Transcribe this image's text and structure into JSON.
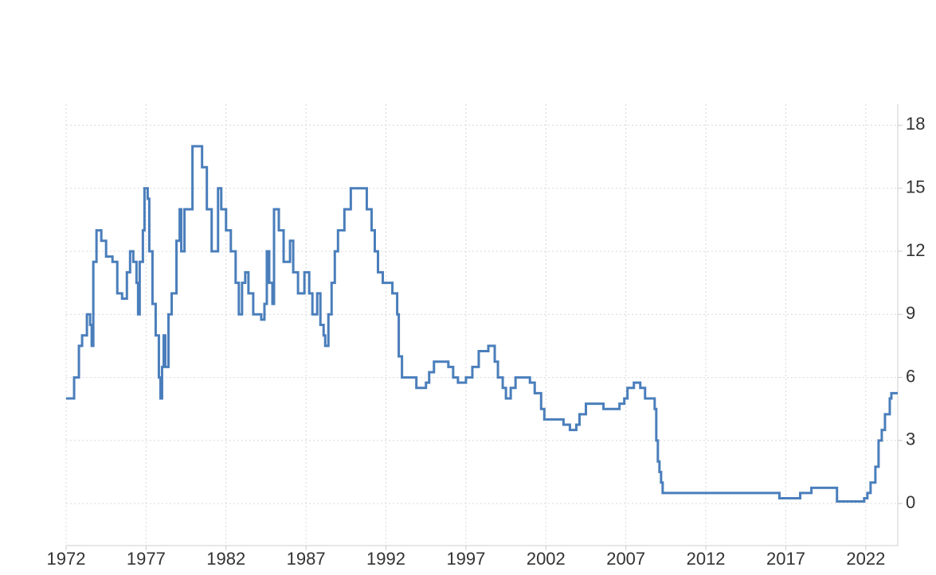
{
  "chart_data": {
    "type": "line",
    "step": true,
    "grid": true,
    "y_axis_side": "right",
    "x": [
      1972.0,
      1972.5,
      1972.8,
      1973.0,
      1973.3,
      1973.5,
      1973.6,
      1973.7,
      1973.9,
      1974.2,
      1974.5,
      1974.9,
      1975.2,
      1975.5,
      1975.8,
      1976.0,
      1976.2,
      1976.4,
      1976.5,
      1976.6,
      1976.8,
      1976.9,
      1977.1,
      1977.2,
      1977.4,
      1977.6,
      1977.8,
      1977.9,
      1978.0,
      1978.1,
      1978.2,
      1978.4,
      1978.6,
      1978.9,
      1979.1,
      1979.2,
      1979.4,
      1979.9,
      1980.5,
      1980.8,
      1981.1,
      1981.5,
      1981.7,
      1982.0,
      1982.3,
      1982.6,
      1982.8,
      1983.0,
      1983.2,
      1983.4,
      1983.7,
      1984.2,
      1984.4,
      1984.55,
      1984.7,
      1984.9,
      1985.0,
      1985.3,
      1985.6,
      1986.0,
      1986.2,
      1986.5,
      1986.9,
      1987.2,
      1987.4,
      1987.7,
      1987.9,
      1988.1,
      1988.2,
      1988.4,
      1988.6,
      1988.8,
      1989.0,
      1989.4,
      1989.8,
      1990.8,
      1991.1,
      1991.3,
      1991.5,
      1991.8,
      1992.4,
      1992.7,
      1992.8,
      1993.0,
      1993.9,
      1994.5,
      1994.7,
      1995.0,
      1995.9,
      1996.2,
      1996.5,
      1997.0,
      1997.4,
      1997.8,
      1998.4,
      1998.8,
      1999.0,
      1999.3,
      1999.5,
      1999.8,
      2000.1,
      2001.0,
      2001.3,
      2001.7,
      2001.9,
      2003.1,
      2003.5,
      2003.9,
      2004.1,
      2004.5,
      2005.6,
      2006.6,
      2006.9,
      2007.1,
      2007.5,
      2007.9,
      2008.2,
      2008.8,
      2008.9,
      2009.0,
      2009.1,
      2009.2,
      2009.3,
      2016.6,
      2017.9,
      2018.6,
      2020.2,
      2021.9,
      2022.1,
      2022.3,
      2022.6,
      2022.8,
      2023.0,
      2023.2,
      2023.5,
      2023.6,
      2024.0
    ],
    "series": [
      {
        "color": "#4a7ebb",
        "values": [
          5,
          6,
          7.5,
          8,
          9,
          8.5,
          7.5,
          11.5,
          13,
          12.5,
          11.75,
          11.5,
          10,
          9.75,
          11,
          12,
          11.5,
          10.5,
          9,
          11.5,
          13,
          15,
          14.5,
          12,
          9.5,
          8,
          6,
          5,
          6.5,
          8,
          6.5,
          9,
          10,
          12.5,
          14,
          12,
          14,
          17,
          16,
          14,
          12,
          15,
          14,
          13,
          12,
          10.5,
          9,
          10.5,
          11,
          10,
          9,
          8.75,
          9.5,
          12,
          10.5,
          9.5,
          14,
          13,
          11.5,
          12.5,
          11,
          10,
          11,
          10,
          9,
          10,
          8.5,
          8,
          7.5,
          9,
          10.5,
          12,
          13,
          14,
          15,
          14,
          13,
          12,
          11,
          10.5,
          10,
          9,
          7,
          6,
          5.5,
          5.75,
          6.25,
          6.75,
          6.5,
          6,
          5.75,
          6,
          6.5,
          7.25,
          7.5,
          6.75,
          6,
          5.5,
          5,
          5.5,
          6,
          5.75,
          5.25,
          4.5,
          4,
          3.75,
          3.5,
          3.75,
          4.25,
          4.75,
          4.5,
          4.75,
          5,
          5.5,
          5.75,
          5.5,
          5,
          4.5,
          3,
          2,
          1.5,
          1,
          0.5,
          0.25,
          0.5,
          0.75,
          0.1,
          0.25,
          0.5,
          1,
          1.75,
          3,
          3.5,
          4.25,
          5,
          5.25,
          5.25
        ]
      }
    ],
    "xlim": [
      1972,
      2024
    ],
    "xticks": [
      1972,
      1977,
      1982,
      1987,
      1992,
      1997,
      2002,
      2007,
      2012,
      2017,
      2022
    ],
    "ylim": [
      -2,
      19
    ],
    "yticks": [
      0,
      3,
      6,
      9,
      12,
      15,
      18
    ]
  }
}
